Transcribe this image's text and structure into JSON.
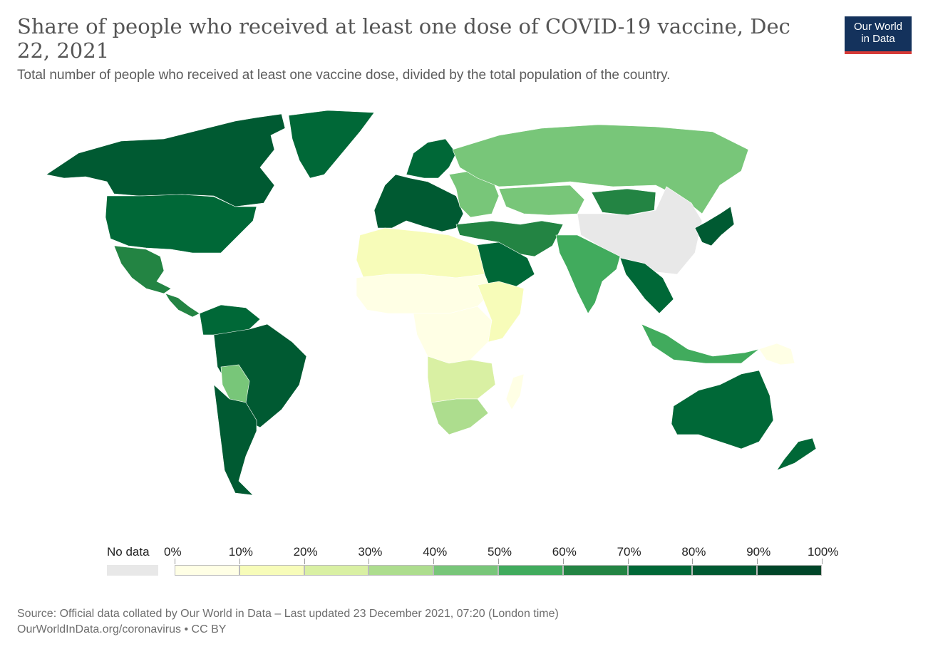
{
  "header": {
    "title": "Share of people who received at least one dose of COVID-19 vaccine, Dec 22, 2021",
    "subtitle": "Total number of people who received at least one vaccine dose, divided by the total population of the country."
  },
  "logo": {
    "line1": "Our World",
    "line2": "in Data"
  },
  "legend": {
    "no_data_label": "No data",
    "ticks": [
      "0%",
      "10%",
      "20%",
      "30%",
      "40%",
      "50%",
      "60%",
      "70%",
      "80%",
      "90%",
      "100%"
    ],
    "colors": [
      "#ffffe5",
      "#f7fcb9",
      "#d9f0a3",
      "#addd8e",
      "#78c679",
      "#41ab5d",
      "#238443",
      "#006837",
      "#005a32",
      "#004529"
    ],
    "no_data_color": "#e8e8e8"
  },
  "footer": {
    "source": "Source: Official data collated by Our World in Data – Last updated 23 December 2021, 07:20 (London time)",
    "link": "OurWorldInData.org/coronavirus • CC BY"
  },
  "map": {
    "regions": [
      {
        "name": "north-america-region",
        "share": 80
      },
      {
        "name": "usa-region",
        "share": 70
      },
      {
        "name": "greenland-region",
        "share": 70
      },
      {
        "name": "mexico-region",
        "share": 60
      },
      {
        "name": "central-america-region",
        "share": 60
      },
      {
        "name": "south-america-north-region",
        "share": 70
      },
      {
        "name": "brazil-region",
        "share": 80
      },
      {
        "name": "bolivia-region",
        "share": 40
      },
      {
        "name": "argentina-region",
        "share": 80
      },
      {
        "name": "western-europe-region",
        "share": 80
      },
      {
        "name": "scandinavia-region",
        "share": 70
      },
      {
        "name": "eastern-europe-region",
        "share": 40
      },
      {
        "name": "russia-region",
        "share": 40
      },
      {
        "name": "kazakhstan-region",
        "share": 40
      },
      {
        "name": "mongolia-region",
        "share": 60
      },
      {
        "name": "china-region",
        "share": null
      },
      {
        "name": "japan-korea-region",
        "share": 80
      },
      {
        "name": "middle-east-region",
        "share": 60
      },
      {
        "name": "arabia-region",
        "share": 70
      },
      {
        "name": "india-region",
        "share": 50
      },
      {
        "name": "southeast-asia-region",
        "share": 70
      },
      {
        "name": "indonesia-region",
        "share": 50
      },
      {
        "name": "north-africa-region",
        "share": 10
      },
      {
        "name": "sahel-region",
        "share": 0
      },
      {
        "name": "central-africa-region",
        "share": 0
      },
      {
        "name": "east-africa-region",
        "share": 10
      },
      {
        "name": "southern-africa-region",
        "share": 20
      },
      {
        "name": "south-africa-region",
        "share": 30
      },
      {
        "name": "madagascar-region",
        "share": 0
      },
      {
        "name": "australia-region",
        "share": 70
      },
      {
        "name": "new-zealand-region",
        "share": 70
      },
      {
        "name": "png-region",
        "share": 0
      }
    ]
  }
}
